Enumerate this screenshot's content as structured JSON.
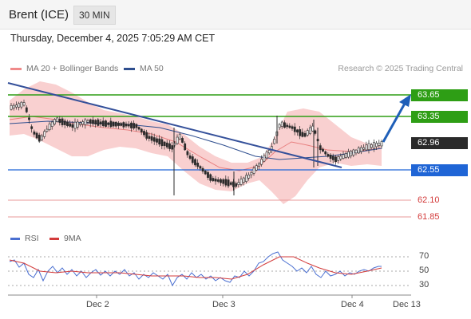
{
  "header": {
    "instrument": "Brent (ICE)",
    "timeframe": "30 MIN"
  },
  "datetime": "Thursday, December 4, 2025 7:05:29 AM CET",
  "legend": {
    "ma20_label": "MA 20 + Bollinger Bands",
    "ma50_label": "MA 50",
    "credit": "Research © 2025 Trading Central"
  },
  "price_levels": {
    "r2": "63.65",
    "r1": "63.35",
    "last": "62.96",
    "pivot": "62.55",
    "s1": "62.10",
    "s2": "61.85"
  },
  "rsi": {
    "rsi_label": "RSI",
    "ma_label": "9MA",
    "levels": [
      "70",
      "50",
      "30"
    ]
  },
  "xaxis": [
    "Dec 2",
    "Dec 3",
    "Dec 4",
    "Dec 13"
  ],
  "colors": {
    "green": "#2e9e15",
    "blue": "#1f65d6",
    "red": "#d33b3b",
    "candle": "#2b2b2b",
    "band": "#f9d0d0",
    "ma50": "#2f4f8f",
    "arrow": "#1f5fb8"
  }
}
